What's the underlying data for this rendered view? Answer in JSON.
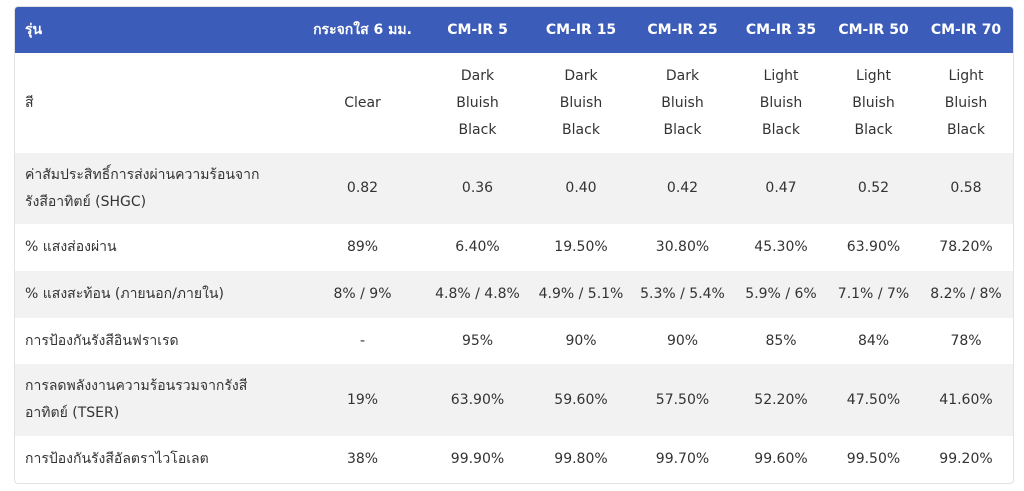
{
  "table": {
    "header": [
      "รุ่น",
      "กระจกใส 6 มม.",
      "CM-IR 5",
      "CM-IR 15",
      "CM-IR 25",
      "CM-IR 35",
      "CM-IR 50",
      "CM-IR 70"
    ],
    "rows": [
      [
        "สี",
        "Clear",
        "Dark Bluish Black",
        "Dark Bluish Black",
        "Dark Bluish Black",
        "Light Bluish Black",
        "Light Bluish Black",
        "Light Bluish Black"
      ],
      [
        "ค่าสัมประสิทธิ์การส่งผ่านความร้อนจากรังสีอาทิตย์ (SHGC)",
        "0.82",
        "0.36",
        "0.40",
        "0.42",
        "0.47",
        "0.52",
        "0.58"
      ],
      [
        "% แสงส่องผ่าน",
        "89%",
        "6.40%",
        "19.50%",
        "30.80%",
        "45.30%",
        "63.90%",
        "78.20%"
      ],
      [
        "% แสงสะท้อน (ภายนอก/ภายใน)",
        "8% / 9%",
        "4.8% / 4.8%",
        "4.9% / 5.1%",
        "5.3% / 5.4%",
        "5.9% / 6%",
        "7.1% / 7%",
        "8.2% / 8%"
      ],
      [
        "การป้องกันรังสีอินฟราเรด",
        "-",
        "95%",
        "90%",
        "90%",
        "85%",
        "84%",
        "78%"
      ],
      [
        "การลดพลังงานความร้อนรวมจากรังสีอาทิตย์ (TSER)",
        "19%",
        "63.90%",
        "59.60%",
        "57.50%",
        "52.20%",
        "47.50%",
        "41.60%"
      ],
      [
        "การป้องกันรังสีอัลตราไวโอเลต",
        "38%",
        "99.90%",
        "99.80%",
        "99.70%",
        "99.60%",
        "99.50%",
        "99.20%"
      ]
    ]
  }
}
